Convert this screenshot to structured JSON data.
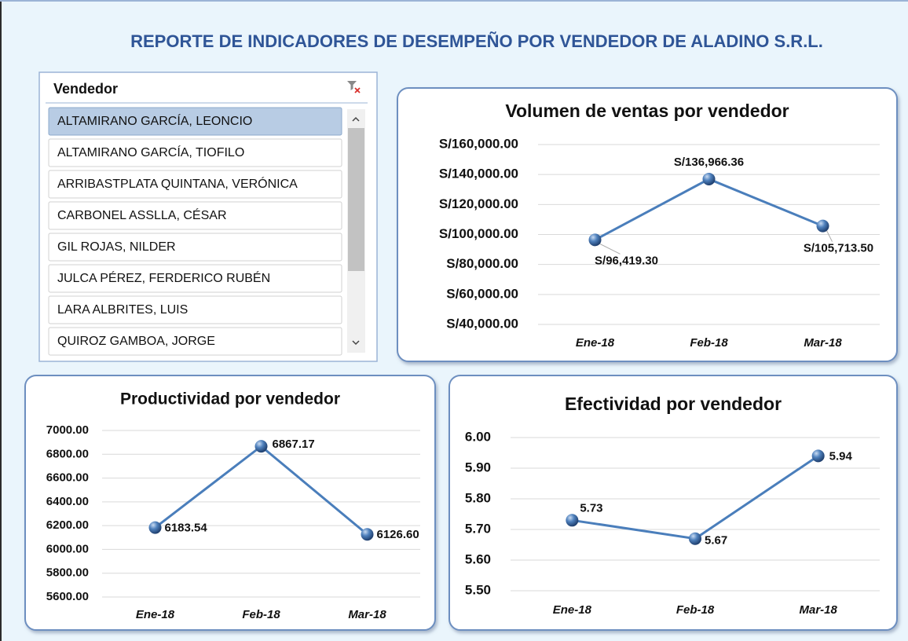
{
  "title": "REPORTE DE INDICADORES DE DESEMPEÑO POR VENDEDOR DE ALADINO S.R.L.",
  "slicer": {
    "header": "Vendedor",
    "selected": 0,
    "items": [
      "ALTAMIRANO GARCÍA, LEONCIO",
      "ALTAMIRANO GARCÍA, TIOFILO",
      "ARRIBASTPLATA QUINTANA, VERÓNICA",
      "CARBONEL ASSLLA, CÉSAR",
      "GIL ROJAS, NILDER",
      "JULCA PÉREZ, FERDERICO RUBÉN",
      "LARA ALBRITES, LUIS",
      "QUIROZ GAMBOA, JORGE"
    ]
  },
  "chart_data": [
    {
      "type": "line",
      "title": "Volumen de ventas por vendedor",
      "categories": [
        "Ene-18",
        "Feb-18",
        "Mar-18"
      ],
      "values": [
        96419.3,
        136966.36,
        105713.5
      ],
      "value_labels": [
        "S/96,419.30",
        "S/136,966.36",
        "S/105,713.50"
      ],
      "color": "#4a7ebb",
      "grid": true,
      "ylim": [
        40000,
        160000
      ],
      "yticks": [
        {
          "value": 40000,
          "label": "S/40,000.00"
        },
        {
          "value": 60000,
          "label": "S/60,000.00"
        },
        {
          "value": 80000,
          "label": "S/80,000.00"
        },
        {
          "value": 100000,
          "label": "S/100,000.00"
        },
        {
          "value": 120000,
          "label": "S/120,000.00"
        },
        {
          "value": 140000,
          "label": "S/140,000.00"
        },
        {
          "value": 160000,
          "label": "S/160,000.00"
        }
      ]
    },
    {
      "type": "line",
      "title": "Productividad por vendedor",
      "categories": [
        "Ene-18",
        "Feb-18",
        "Mar-18"
      ],
      "values": [
        6183.54,
        6867.17,
        6126.6
      ],
      "value_labels": [
        "6183.54",
        "6867.17",
        "6126.60"
      ],
      "color": "#4a7ebb",
      "grid": true,
      "ylim": [
        5600,
        7000
      ],
      "yticks": [
        {
          "value": 5600,
          "label": "5600.00"
        },
        {
          "value": 5800,
          "label": "5800.00"
        },
        {
          "value": 6000,
          "label": "6000.00"
        },
        {
          "value": 6200,
          "label": "6200.00"
        },
        {
          "value": 6400,
          "label": "6400.00"
        },
        {
          "value": 6600,
          "label": "6600.00"
        },
        {
          "value": 6800,
          "label": "6800.00"
        },
        {
          "value": 7000,
          "label": "7000.00"
        }
      ]
    },
    {
      "type": "line",
      "title": "Efectividad por vendedor",
      "categories": [
        "Ene-18",
        "Feb-18",
        "Mar-18"
      ],
      "values": [
        5.73,
        5.67,
        5.94
      ],
      "color": "#4a7ebb",
      "grid": true,
      "ylim": [
        5.5,
        6.0
      ],
      "yticks": [
        {
          "value": 5.5,
          "label": "5.50"
        },
        {
          "value": 5.6,
          "label": "5.60"
        },
        {
          "value": 5.7,
          "label": "5.70"
        },
        {
          "value": 5.8,
          "label": "5.80"
        },
        {
          "value": 5.9,
          "label": "5.90"
        },
        {
          "value": 6.0,
          "label": "6.00"
        }
      ]
    }
  ]
}
